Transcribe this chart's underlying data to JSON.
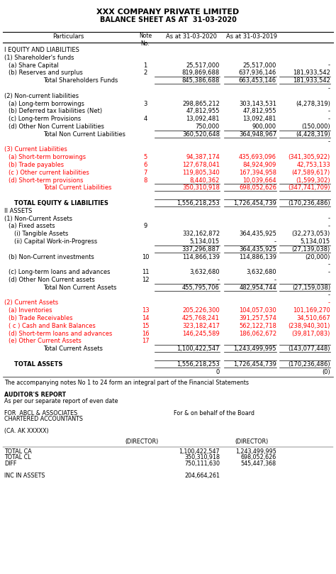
{
  "title1": "XXX COMPANY PRIVATE LIMITED",
  "title2": "BALANCE SHEET AS AT  31-03-2020",
  "bg_color": "#ffffff",
  "rows": [
    {
      "text": "I EQUITY AND LIABILITIES",
      "indent": 0,
      "bold": false,
      "note": "",
      "col3": "",
      "col4": "",
      "col5": "",
      "color": "black",
      "top_border": false,
      "bottom_border": false
    },
    {
      "text": "(1) Shareholder's funds",
      "indent": 0,
      "bold": false,
      "note": "",
      "col3": "",
      "col4": "",
      "col5": "",
      "color": "black",
      "top_border": false,
      "bottom_border": false
    },
    {
      "text": "(a) Share Capital",
      "indent": 1,
      "bold": false,
      "note": "1",
      "col3": "25,517,000",
      "col4": "25,517,000",
      "col5": "-",
      "color": "black",
      "top_border": false,
      "bottom_border": false
    },
    {
      "text": "(b) Reserves and surplus",
      "indent": 1,
      "bold": false,
      "note": "2",
      "col3": "819,869,688",
      "col4": "637,936,146",
      "col5": "181,933,542",
      "color": "black",
      "top_border": false,
      "bottom_border": false
    },
    {
      "text": "Total Shareholders Funds",
      "indent": 3,
      "bold": false,
      "note": "",
      "col3": "845,386,688",
      "col4": "663,453,146",
      "col5": "181,933,542",
      "color": "black",
      "top_border": true,
      "bottom_border": true
    },
    {
      "text": "",
      "indent": 0,
      "bold": false,
      "note": "",
      "col3": "",
      "col4": "",
      "col5": "-",
      "color": "black",
      "top_border": false,
      "bottom_border": false
    },
    {
      "text": "(2) Non-current liabilities",
      "indent": 0,
      "bold": false,
      "note": "",
      "col3": "",
      "col4": "",
      "col5": "",
      "color": "black",
      "top_border": false,
      "bottom_border": false
    },
    {
      "text": "(a) Long-term borrowings",
      "indent": 1,
      "bold": false,
      "note": "3",
      "col3": "298,865,212",
      "col4": "303,143,531",
      "col5": "(4,278,319)",
      "color": "black",
      "top_border": false,
      "bottom_border": false
    },
    {
      "text": "(b) Deferred tax liabilities (Net)",
      "indent": 1,
      "bold": false,
      "note": "",
      "col3": "47,812,955",
      "col4": "47,812,955",
      "col5": "-",
      "color": "black",
      "top_border": false,
      "bottom_border": false
    },
    {
      "text": "(c) Long-term Provisions",
      "indent": 1,
      "bold": false,
      "note": "4",
      "col3": "13,092,481",
      "col4": "13,092,481",
      "col5": "-",
      "color": "black",
      "top_border": false,
      "bottom_border": false
    },
    {
      "text": "(d) Other Non Current Liabilities",
      "indent": 1,
      "bold": false,
      "note": "",
      "col3": "750,000",
      "col4": "900,000",
      "col5": "(150,000)",
      "color": "black",
      "top_border": false,
      "bottom_border": false
    },
    {
      "text": "Total Non Current Liabilities",
      "indent": 3,
      "bold": false,
      "note": "",
      "col3": "360,520,648",
      "col4": "364,948,967",
      "col5": "(4,428,319)",
      "color": "black",
      "top_border": true,
      "bottom_border": true
    },
    {
      "text": "",
      "indent": 0,
      "bold": false,
      "note": "",
      "col3": "",
      "col4": "",
      "col5": "-",
      "color": "black",
      "top_border": false,
      "bottom_border": false
    },
    {
      "text": "(3) Current Liabilities",
      "indent": 0,
      "bold": false,
      "note": "",
      "col3": "",
      "col4": "",
      "col5": "",
      "color": "red",
      "top_border": false,
      "bottom_border": false
    },
    {
      "text": "(a) Short-term borrowings",
      "indent": 1,
      "bold": false,
      "note": "5",
      "col3": "94,387,174",
      "col4": "435,693,096",
      "col5": "(341,305,922)",
      "color": "red",
      "top_border": false,
      "bottom_border": false
    },
    {
      "text": "(b) Trade payables",
      "indent": 1,
      "bold": false,
      "note": "6",
      "col3": "127,678,041",
      "col4": "84,924,909",
      "col5": "42,753,133",
      "color": "red",
      "top_border": false,
      "bottom_border": false
    },
    {
      "text": "(c ) Other current liabilities",
      "indent": 1,
      "bold": false,
      "note": "7",
      "col3": "119,805,340",
      "col4": "167,394,958",
      "col5": "(47,589,617)",
      "color": "red",
      "top_border": false,
      "bottom_border": false
    },
    {
      "text": "(d) Short-term provisions",
      "indent": 1,
      "bold": false,
      "note": "8",
      "col3": "8,440,362",
      "col4": "10,039,664",
      "col5": "(1,599,302)",
      "color": "red",
      "top_border": false,
      "bottom_border": false
    },
    {
      "text": "Total Current Liabilities",
      "indent": 3,
      "bold": false,
      "note": "",
      "col3": "350,310,918",
      "col4": "698,052,626",
      "col5": "(347,741,709)",
      "color": "red",
      "top_border": true,
      "bottom_border": true
    },
    {
      "text": "",
      "indent": 0,
      "bold": false,
      "note": "",
      "col3": "",
      "col4": "",
      "col5": "",
      "color": "black",
      "top_border": false,
      "bottom_border": false
    },
    {
      "text": "TOTAL EQUITY & LIABILITIES",
      "indent": 2,
      "bold": true,
      "note": "",
      "col3": "1,556,218,253",
      "col4": "1,726,454,739",
      "col5": "(170,236,486)",
      "color": "black",
      "top_border": true,
      "bottom_border": true
    },
    {
      "text": "II ASSETS",
      "indent": 0,
      "bold": false,
      "note": "",
      "col3": "",
      "col4": "",
      "col5": "",
      "color": "black",
      "top_border": false,
      "bottom_border": false
    },
    {
      "text": "(1) Non-Current Assets",
      "indent": 0,
      "bold": false,
      "note": "",
      "col3": "",
      "col4": "",
      "col5": "-",
      "color": "black",
      "top_border": false,
      "bottom_border": false
    },
    {
      "text": "(a) Fixed assets",
      "indent": 1,
      "bold": false,
      "note": "9",
      "col3": "",
      "col4": "",
      "col5": "-",
      "color": "black",
      "top_border": false,
      "bottom_border": false,
      "text_underline": true
    },
    {
      "text": "(i) Tangible Assets",
      "indent": 2,
      "bold": false,
      "note": "",
      "col3": "332,162,872",
      "col4": "364,435,925",
      "col5": "(32,273,053)",
      "color": "black",
      "top_border": false,
      "bottom_border": false
    },
    {
      "text": "(ii) Capital Work-in-Progress",
      "indent": 2,
      "bold": false,
      "note": "",
      "col3": "5,134,015",
      "col4": "-",
      "col5": "5,134,015",
      "color": "black",
      "top_border": false,
      "bottom_border": false
    },
    {
      "text": "",
      "indent": 3,
      "bold": false,
      "note": "",
      "col3": "337,296,887",
      "col4": "364,435,925",
      "col5": "(27,139,038)",
      "color": "black",
      "top_border": true,
      "bottom_border": true
    },
    {
      "text": "(b) Non-Current investments",
      "indent": 1,
      "bold": false,
      "note": "10",
      "col3": "114,866,139",
      "col4": "114,886,139",
      "col5": "(20,000)",
      "color": "black",
      "top_border": false,
      "bottom_border": false
    },
    {
      "text": "",
      "indent": 0,
      "bold": false,
      "note": "",
      "col3": "",
      "col4": "",
      "col5": "-",
      "color": "black",
      "top_border": false,
      "bottom_border": false
    },
    {
      "text": "(c) Long-term loans and advances",
      "indent": 1,
      "bold": false,
      "note": "11",
      "col3": "3,632,680",
      "col4": "3,632,680",
      "col5": "-",
      "color": "black",
      "top_border": false,
      "bottom_border": false
    },
    {
      "text": "(d) Other Non Current assets",
      "indent": 1,
      "bold": false,
      "note": "12",
      "col3": "-",
      "col4": "-",
      "col5": "",
      "color": "black",
      "top_border": false,
      "bottom_border": false
    },
    {
      "text": "Total Non Current Assets",
      "indent": 3,
      "bold": false,
      "note": "",
      "col3": "455,795,706",
      "col4": "482,954,744",
      "col5": "(27,159,038)",
      "color": "black",
      "top_border": true,
      "bottom_border": true
    },
    {
      "text": "",
      "indent": 0,
      "bold": false,
      "note": "",
      "col3": "",
      "col4": "",
      "col5": "-",
      "color": "black",
      "top_border": false,
      "bottom_border": false
    },
    {
      "text": "(2) Current Assets",
      "indent": 0,
      "bold": false,
      "note": "",
      "col3": "",
      "col4": "",
      "col5": "-",
      "color": "red",
      "top_border": false,
      "bottom_border": false
    },
    {
      "text": "(a) Inventories",
      "indent": 1,
      "bold": false,
      "note": "13",
      "col3": "205,226,300",
      "col4": "104,057,030",
      "col5": "101,169,270",
      "color": "red",
      "top_border": false,
      "bottom_border": false
    },
    {
      "text": "(b) Trade Receivables",
      "indent": 1,
      "bold": false,
      "note": "14",
      "col3": "425,768,241",
      "col4": "391,257,574",
      "col5": "34,510,667",
      "color": "red",
      "top_border": false,
      "bottom_border": false
    },
    {
      "text": "( c ) Cash and Bank Balances",
      "indent": 1,
      "bold": false,
      "note": "15",
      "col3": "323,182,417",
      "col4": "562,122,718",
      "col5": "(238,940,301)",
      "color": "red",
      "top_border": false,
      "bottom_border": false
    },
    {
      "text": "(d) Short-term loans and advances",
      "indent": 1,
      "bold": false,
      "note": "16",
      "col3": "146,245,589",
      "col4": "186,062,672",
      "col5": "(39,817,083)",
      "color": "red",
      "top_border": false,
      "bottom_border": false
    },
    {
      "text": "(e) Other Current Assets",
      "indent": 1,
      "bold": false,
      "note": "17",
      "col3": "",
      "col4": "",
      "col5": "",
      "color": "red",
      "top_border": false,
      "bottom_border": false
    },
    {
      "text": "Total Current Assets",
      "indent": 3,
      "bold": false,
      "note": "",
      "col3": "1,100,422,547",
      "col4": "1,243,499,995",
      "col5": "(143,077,448)",
      "color": "black",
      "top_border": true,
      "bottom_border": true
    },
    {
      "text": "",
      "indent": 0,
      "bold": false,
      "note": "",
      "col3": "",
      "col4": "",
      "col5": "",
      "color": "black",
      "top_border": false,
      "bottom_border": false
    },
    {
      "text": "TOTAL ASSETS",
      "indent": 2,
      "bold": true,
      "note": "",
      "col3": "1,556,218,253",
      "col4": "1,726,454,739",
      "col5": "(170,236,486)",
      "color": "black",
      "top_border": true,
      "bottom_border": true
    },
    {
      "text": "",
      "indent": 2,
      "bold": false,
      "note": "",
      "col3": "0",
      "col4": "",
      "col5": "(0)",
      "color": "black",
      "top_border": false,
      "bottom_border": false
    }
  ],
  "footer_lines": [
    {
      "text": "The accompanying notes No 1 to 24 form an integral part of the Financial Statements",
      "bold": false,
      "right": ""
    },
    {
      "text": "",
      "bold": false,
      "right": ""
    },
    {
      "text": "AUDITOR'S REPORT",
      "bold": true,
      "right": ""
    },
    {
      "text": "As per our separate report of even date",
      "bold": false,
      "right": ""
    },
    {
      "text": "",
      "bold": false,
      "right": ""
    },
    {
      "text": "FOR  ABCL & ASSOCIATES",
      "bold": false,
      "right": "For & on behalf of the Board"
    },
    {
      "text": "CHARTERED ACCOUNTANTS",
      "bold": false,
      "right": ""
    },
    {
      "text": "",
      "bold": false,
      "right": ""
    },
    {
      "text": "(CA. AK XXXXX)",
      "bold": false,
      "right": ""
    }
  ],
  "bottom_rows": [
    {
      "label": "TOTAL CA",
      "col3": "1,100,422,547",
      "col4": "1,243,499,995"
    },
    {
      "label": "TOTAL CL",
      "col3": "350,310,918",
      "col4": "698,052,626"
    },
    {
      "label": "DIFF",
      "col3": "750,111,630",
      "col4": "545,447,368"
    },
    {
      "label": "",
      "col3": "",
      "col4": ""
    },
    {
      "label": "INC IN ASSETS",
      "col3": "204,664,261",
      "col4": ""
    }
  ]
}
